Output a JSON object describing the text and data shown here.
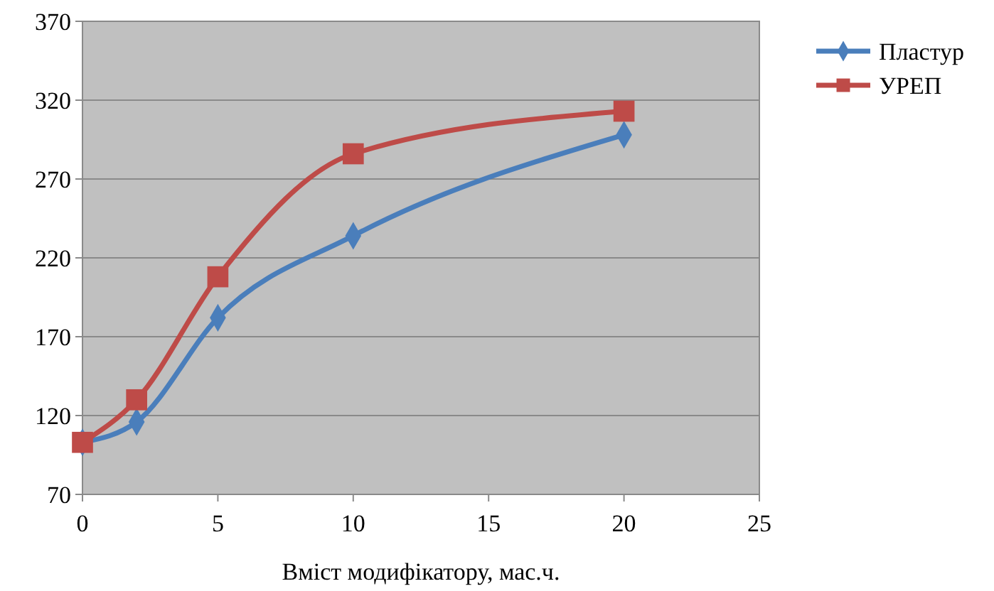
{
  "chart_data": {
    "type": "line",
    "xlabel": "Вміст модифікатору, мас.ч.",
    "xlim": [
      0,
      25
    ],
    "xticks": [
      0,
      5,
      10,
      15,
      20,
      25
    ],
    "ylim": [
      70,
      370
    ],
    "yticks": [
      70,
      120,
      170,
      220,
      270,
      320,
      370
    ],
    "grid": "y",
    "legend": "right",
    "x": [
      0,
      2,
      5,
      10,
      20
    ],
    "series": [
      {
        "name": "Пластур",
        "color": "#4a7ebb",
        "marker": "diamond",
        "values": [
          103,
          116,
          182,
          234,
          298
        ]
      },
      {
        "name": "УРЕП",
        "color": "#be4b48",
        "marker": "square",
        "values": [
          103,
          130,
          208,
          286,
          313
        ]
      }
    ]
  }
}
